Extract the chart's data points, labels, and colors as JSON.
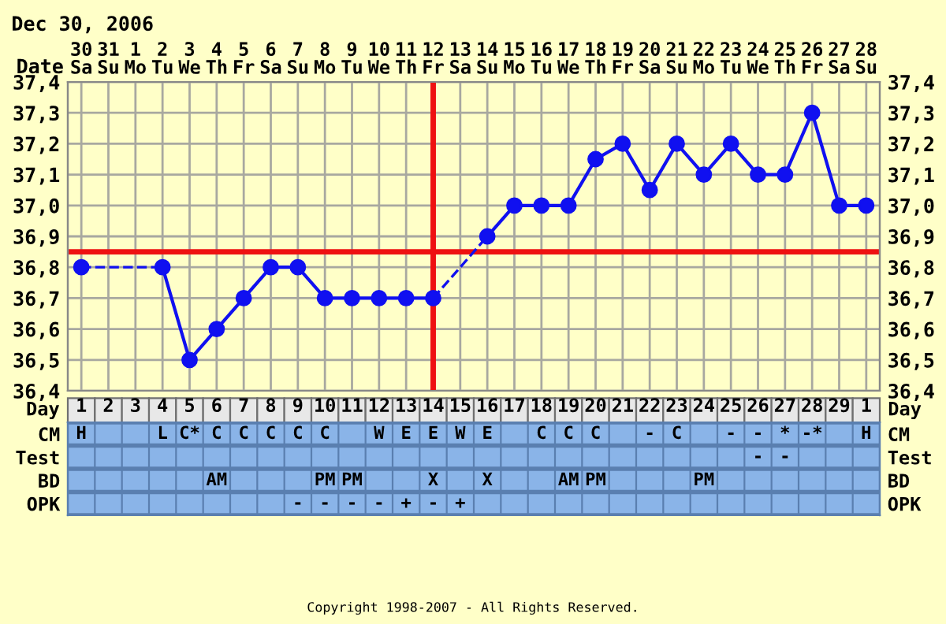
{
  "chart_data": [
    {
      "type": "line",
      "title": "Dec 30, 2006",
      "xlabel": "Date",
      "categories": [
        "30\nSa",
        "31\nSu",
        "1\nMo",
        "2\nTu",
        "3\nWe",
        "4\nTh",
        "5\nFr",
        "6\nSa",
        "7\nSu",
        "8\nMo",
        "9\nTu",
        "10\nWe",
        "11\nTh",
        "12\nFr",
        "13\nSa",
        "14\nSu",
        "15\nMo",
        "16\nTu",
        "17\nWe",
        "18\nTh",
        "19\nFr",
        "20\nSa",
        "21\nSu",
        "22\nMo",
        "23\nTu",
        "24\nWe",
        "25\nTh",
        "26\nFr",
        "27\nSa",
        "28\nSu"
      ],
      "series": [
        {
          "color": "#1010f0",
          "values": [
            36.8,
            null,
            null,
            36.8,
            36.5,
            36.6,
            36.7,
            36.8,
            36.8,
            36.7,
            36.7,
            36.7,
            36.7,
            36.7,
            null,
            36.9,
            37.0,
            37.0,
            37.0,
            37.15,
            37.2,
            37.05,
            37.2,
            37.1,
            37.2,
            37.1,
            37.1,
            37.3,
            37.0,
            37.0
          ]
        }
      ],
      "ylim": [
        36.4,
        37.4
      ],
      "y2lim": [
        36.4,
        37.4
      ],
      "yticks": [
        {
          "value": 36.4,
          "label": "36,4"
        },
        {
          "value": 36.5,
          "label": "36,5"
        },
        {
          "value": 36.6,
          "label": "36,6"
        },
        {
          "value": 36.7,
          "label": "36,7"
        },
        {
          "value": 36.8,
          "label": "36,8"
        },
        {
          "value": 36.9,
          "label": "36,9"
        },
        {
          "value": 37.0,
          "label": "37,0"
        },
        {
          "value": 37.1,
          "label": "37,1"
        },
        {
          "value": 37.2,
          "label": "37,2"
        },
        {
          "value": 37.3,
          "label": "37,3"
        },
        {
          "value": 37.4,
          "label": "37,4"
        }
      ],
      "y2ticks": [
        {
          "value": 36.4,
          "label": "36,4"
        },
        {
          "value": 36.5,
          "label": "36,5"
        },
        {
          "value": 36.6,
          "label": "36,6"
        },
        {
          "value": 36.7,
          "label": "36,7"
        },
        {
          "value": 36.8,
          "label": "36,8"
        },
        {
          "value": 36.9,
          "label": "36,9"
        },
        {
          "value": 37.0,
          "label": "37,0"
        },
        {
          "value": 37.1,
          "label": "37,1"
        },
        {
          "value": 37.2,
          "label": "37,2"
        },
        {
          "value": 37.3,
          "label": "37,3"
        },
        {
          "value": 37.4,
          "label": "37,4"
        }
      ],
      "grid": true,
      "marker": "circle",
      "line_style": "solid",
      "ref_lines": [
        {
          "axis": "y",
          "value": 36.85,
          "color": "#ee1111"
        },
        {
          "axis": "x",
          "value": "12\nFr",
          "color": "#ee1111"
        }
      ]
    },
    {
      "type": "heatmap",
      "xlabel": "Day",
      "categories": [
        "1",
        "2",
        "3",
        "4",
        "5",
        "6",
        "7",
        "8",
        "9",
        "10",
        "11",
        "12",
        "13",
        "14",
        "15",
        "16",
        "17",
        "18",
        "19",
        "20",
        "21",
        "22",
        "23",
        "24",
        "25",
        "26",
        "27",
        "28",
        "29",
        "1"
      ],
      "y_categories": [
        "CM",
        "Test",
        "BD",
        "OPK"
      ],
      "y2_categories": [
        "CM",
        "Test",
        "BD",
        "OPK"
      ],
      "cells": [
        [
          null,
          null,
          null,
          null,
          null,
          null,
          null,
          null,
          null,
          null,
          null,
          null,
          null,
          null,
          null,
          null,
          null,
          null,
          null,
          null,
          null,
          null,
          null,
          null,
          null,
          null,
          null,
          null,
          null,
          null
        ],
        [
          null,
          null,
          null,
          null,
          null,
          null,
          null,
          null,
          null,
          null,
          null,
          null,
          null,
          null,
          null,
          null,
          null,
          null,
          null,
          null,
          null,
          null,
          null,
          null,
          null,
          null,
          null,
          null,
          null,
          null
        ],
        [
          null,
          null,
          null,
          null,
          null,
          null,
          null,
          null,
          null,
          null,
          null,
          null,
          null,
          null,
          null,
          null,
          null,
          null,
          null,
          null,
          null,
          null,
          null,
          null,
          null,
          null,
          null,
          null,
          null,
          null
        ],
        [
          null,
          null,
          null,
          null,
          null,
          null,
          null,
          null,
          null,
          null,
          null,
          null,
          null,
          null,
          null,
          null,
          null,
          null,
          null,
          null,
          null,
          null,
          null,
          null,
          null,
          null,
          null,
          null,
          null,
          null
        ]
      ],
      "cell_labels": [
        [
          "H",
          null,
          null,
          "L",
          "C*",
          "C",
          "C",
          "C",
          "C",
          "C",
          null,
          "W",
          "E",
          "E",
          "W",
          "E",
          null,
          "C",
          "C",
          "C",
          null,
          "-",
          "C",
          null,
          "-",
          "-",
          "*",
          "-*",
          null,
          "H"
        ],
        [
          null,
          null,
          null,
          null,
          null,
          null,
          null,
          null,
          null,
          null,
          null,
          null,
          null,
          null,
          null,
          null,
          null,
          null,
          null,
          null,
          null,
          null,
          null,
          null,
          null,
          "-",
          "-",
          null,
          null,
          null
        ],
        [
          null,
          null,
          null,
          null,
          null,
          "AM",
          null,
          null,
          null,
          "PM",
          "PM",
          null,
          null,
          "X",
          null,
          "X",
          null,
          null,
          "AM",
          "PM",
          null,
          null,
          null,
          "PM",
          null,
          null,
          null,
          null,
          null,
          null
        ],
        [
          null,
          null,
          null,
          null,
          null,
          null,
          null,
          null,
          "-",
          "-",
          "-",
          "-",
          "+",
          "-",
          "+",
          null,
          null,
          null,
          null,
          null,
          null,
          null,
          null,
          null,
          null,
          null,
          null,
          null,
          null,
          null
        ]
      ],
      "annotations": [
        "Copyright 1998-2007 - All Rights Reserved."
      ]
    }
  ]
}
